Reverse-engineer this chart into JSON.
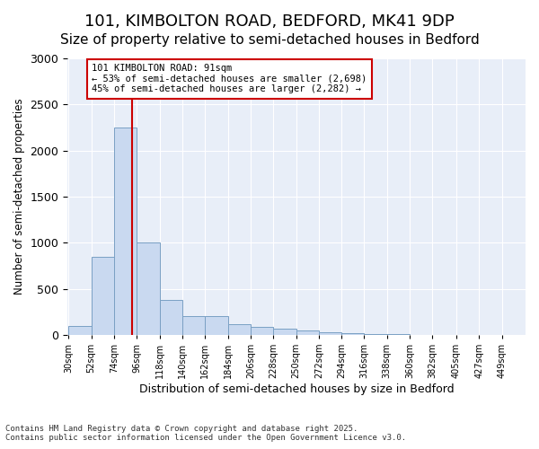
{
  "title1": "101, KIMBOLTON ROAD, BEDFORD, MK41 9DP",
  "title2": "Size of property relative to semi-detached houses in Bedford",
  "xlabel": "Distribution of semi-detached houses by size in Bedford",
  "ylabel": "Number of semi-detached properties",
  "annotation_title": "101 KIMBOLTON ROAD: 91sqm",
  "annotation_line1": "← 53% of semi-detached houses are smaller (2,698)",
  "annotation_line2": "45% of semi-detached houses are larger (2,282) →",
  "footer1": "Contains HM Land Registry data © Crown copyright and database right 2025.",
  "footer2": "Contains public sector information licensed under the Open Government Licence v3.0.",
  "bar_edges": [
    30,
    52,
    74,
    96,
    118,
    140,
    162,
    184,
    206,
    228,
    250,
    272,
    294,
    316,
    338,
    360,
    382,
    405,
    427,
    449,
    471
  ],
  "bar_heights": [
    100,
    850,
    2250,
    1000,
    375,
    200,
    200,
    115,
    85,
    70,
    50,
    30,
    20,
    10,
    5,
    3,
    2,
    1,
    1,
    1
  ],
  "bar_color": "#c9d9f0",
  "bar_edge_color": "#7aa0c4",
  "vline_color": "#cc0000",
  "vline_x": 91,
  "annotation_box_color": "#cc0000",
  "ylim": [
    0,
    3000
  ],
  "yticks": [
    0,
    500,
    1000,
    1500,
    2000,
    2500,
    3000
  ],
  "background_color": "#e8eef8",
  "grid_color": "#ffffff",
  "title1_fontsize": 13,
  "title2_fontsize": 11
}
